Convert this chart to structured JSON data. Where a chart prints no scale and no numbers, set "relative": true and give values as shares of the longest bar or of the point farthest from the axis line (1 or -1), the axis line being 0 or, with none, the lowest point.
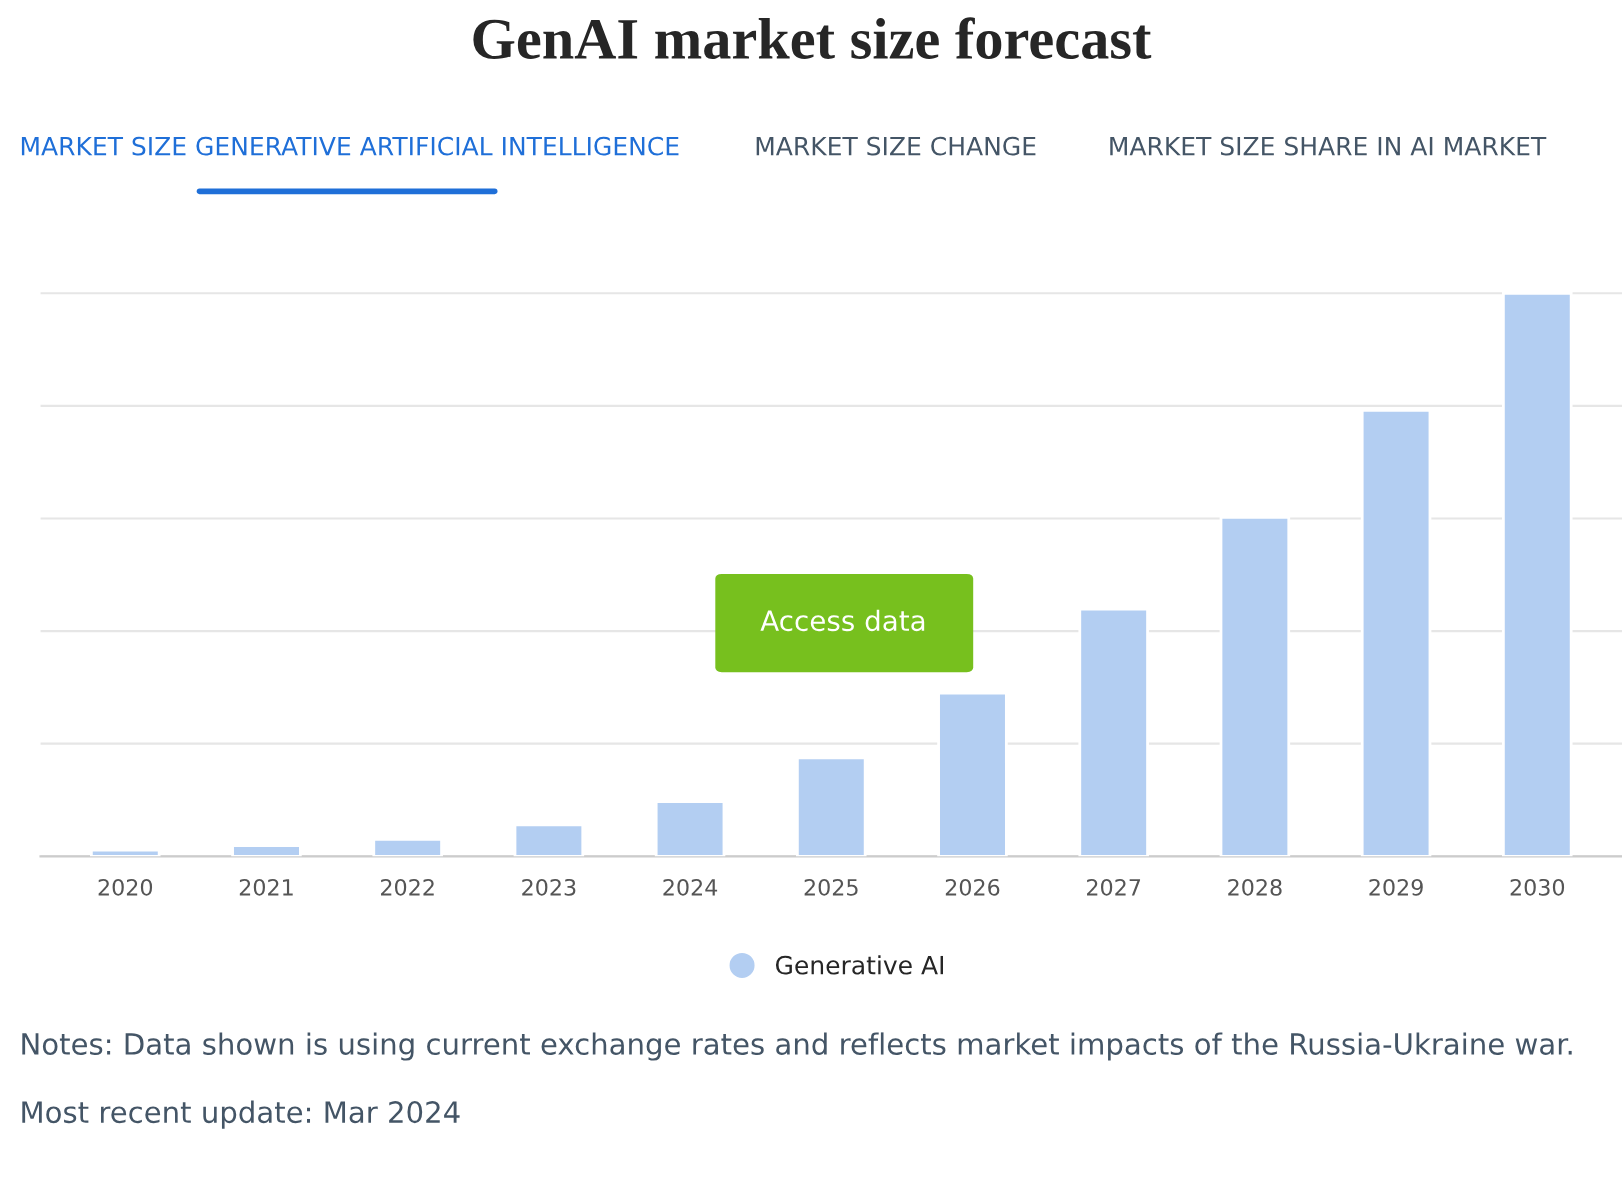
{
  "chart_data": {
    "type": "bar",
    "title": "GenAI market size forecast",
    "relative": true,
    "categories": [
      "2020",
      "2021",
      "2022",
      "2023",
      "2024",
      "2025",
      "2026",
      "2027",
      "2028",
      "2029",
      "2030"
    ],
    "series": [
      {
        "name": "Generative AI",
        "color": "#b3cef2",
        "values": [
          0.011,
          0.019,
          0.03,
          0.056,
          0.097,
          0.175,
          0.29,
          0.439,
          0.602,
          0.792,
          1
        ]
      }
    ],
    "grid": "y",
    "legend": "bottom",
    "annotations": [
      "MARKET SIZE GENERATIVE ARTIFICIAL INTELLIGENCE",
      "MARKET SIZE CHANGE",
      "MARKET SIZE SHARE IN AI MARKET",
      "Access data",
      "Notes: Data shown is using current exchange rates and reflects market impacts of the Russia-Ukraine war.",
      "Most recent update: Mar 2024"
    ]
  }
}
